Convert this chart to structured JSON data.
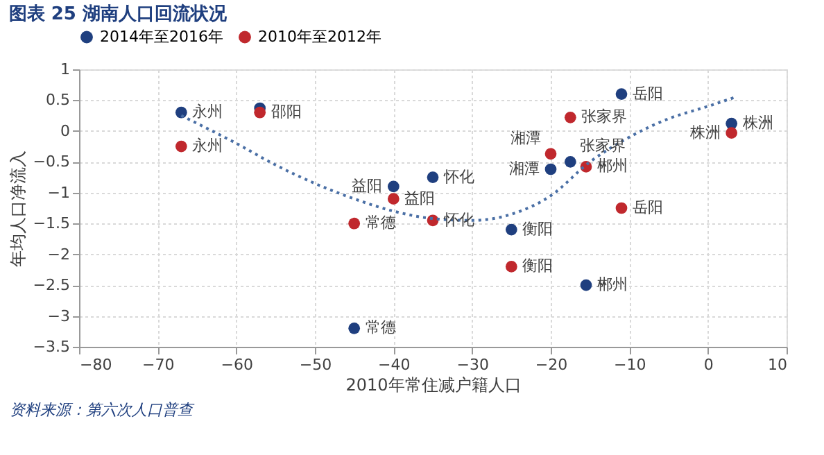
{
  "chart_data": {
    "type": "scatter",
    "title": "图表 25 湖南人口回流状况",
    "xlabel": "2010年常住减户籍人口",
    "ylabel": "年均人口净流入",
    "xlim": [
      -80,
      10
    ],
    "xticks": [
      -80,
      -70,
      -60,
      -50,
      -40,
      -30,
      -20,
      -10,
      0,
      10
    ],
    "ylim": [
      -3.5,
      1
    ],
    "yticks": [
      -3.5,
      -3,
      -2.5,
      -2,
      -1.5,
      -1,
      -0.5,
      0,
      0.5,
      1
    ],
    "grid": true,
    "legend": "top",
    "marker": "circle",
    "series": [
      {
        "name": "2014年至2016年",
        "color": "#1f3f7f",
        "x": [
          -67,
          -57,
          -40,
          -35,
          -45,
          -25,
          -15.5,
          -11,
          -20,
          -17.5,
          3
        ],
        "values": [
          0.3,
          0.37,
          -0.9,
          -0.75,
          -3.2,
          -1.6,
          -2.5,
          0.6,
          -0.62,
          -0.5,
          0.12
        ]
      },
      {
        "name": "2010年至2012年",
        "color": "#c0282d",
        "x": [
          -67,
          -57,
          -40,
          -35,
          -45,
          -25,
          -11,
          -20,
          -17.5,
          -15.5,
          3
        ],
        "values": [
          -0.25,
          0.3,
          -1.1,
          -1.45,
          -1.5,
          -2.2,
          -1.25,
          -0.37,
          0.22,
          -0.58,
          -0.03
        ]
      },
      {
        "type": "line",
        "color": "#4a6fa5",
        "line_style": "dotted",
        "marker": "none",
        "x": [
          -67,
          -60,
          -55,
          -50,
          -45,
          -40,
          -35,
          -30,
          -25,
          -20,
          -15,
          -10,
          -5,
          0,
          3.5
        ],
        "values": [
          0.25,
          -0.2,
          -0.55,
          -0.85,
          -1.1,
          -1.3,
          -1.42,
          -1.45,
          -1.35,
          -1.05,
          -0.5,
          -0.1,
          0.2,
          0.4,
          0.55
        ]
      }
    ],
    "annotations": [
      {
        "text": "永州",
        "x": -67,
        "y": 0.3
      },
      {
        "text": "益阳",
        "x": -40,
        "y": -0.9
      },
      {
        "text": "怀化",
        "x": -35,
        "y": -0.75
      },
      {
        "text": "常德",
        "x": -45,
        "y": -3.2
      },
      {
        "text": "衡阳",
        "x": -25,
        "y": -1.6
      },
      {
        "text": "郴州",
        "x": -15.5,
        "y": -2.5
      },
      {
        "text": "岳阳",
        "x": -11,
        "y": 0.6
      },
      {
        "text": "湘潭",
        "x": -20,
        "y": -0.62
      },
      {
        "text": "张家界",
        "x": -17.5,
        "y": -0.5
      },
      {
        "text": "株洲",
        "x": 3,
        "y": 0.12
      },
      {
        "text": "永州",
        "x": -67,
        "y": -0.25
      },
      {
        "text": "邵阳",
        "x": -57,
        "y": 0.3
      },
      {
        "text": "益阳",
        "x": -40,
        "y": -1.1
      },
      {
        "text": "怀化",
        "x": -35,
        "y": -1.45
      },
      {
        "text": "常德",
        "x": -45,
        "y": -1.5
      },
      {
        "text": "衡阳",
        "x": -25,
        "y": -2.2
      },
      {
        "text": "岳阳",
        "x": -11,
        "y": -1.25
      },
      {
        "text": "湘潭",
        "x": -20,
        "y": -0.37
      },
      {
        "text": "张家界",
        "x": -17.5,
        "y": 0.22
      },
      {
        "text": "郴州",
        "x": -15.5,
        "y": -0.58
      },
      {
        "text": "株洲",
        "x": 3,
        "y": -0.03
      },
      "资料来源：第六次人口普查"
    ]
  }
}
